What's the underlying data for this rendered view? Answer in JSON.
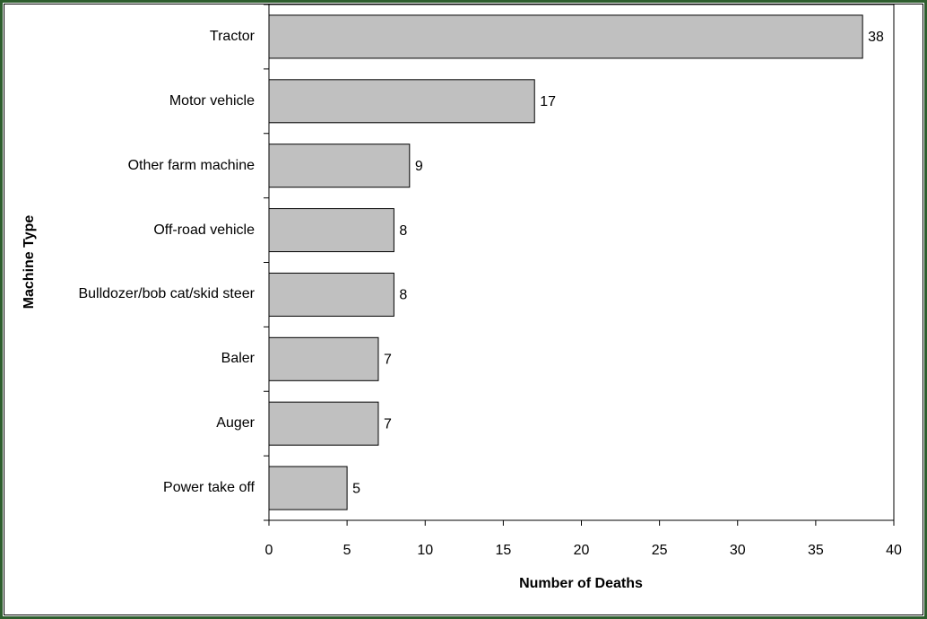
{
  "chart_data": {
    "type": "bar",
    "orientation": "horizontal",
    "x_label": "Number of Deaths",
    "y_label": "Machine Type",
    "categories": [
      "Tractor",
      "Motor vehicle",
      "Other farm machine",
      "Off-road vehicle",
      "Bulldozer/bob cat/skid steer",
      "Baler",
      "Auger",
      "Power take off"
    ],
    "values": [
      38,
      17,
      9,
      8,
      8,
      7,
      7,
      5
    ],
    "color": "#c0c0c0",
    "xlim": [
      0,
      40
    ],
    "xticks": [
      0,
      5,
      10,
      15,
      20,
      25,
      30,
      35,
      40
    ],
    "grid": false
  }
}
